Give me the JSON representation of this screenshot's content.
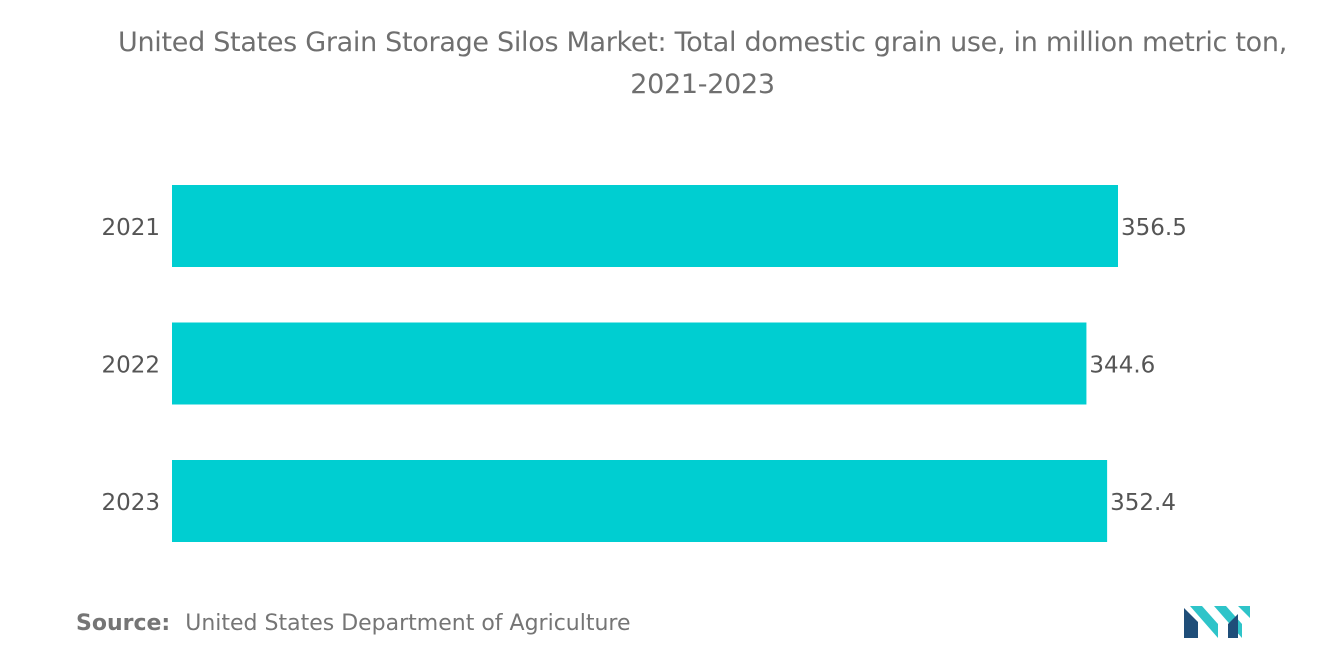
{
  "chart_data": {
    "type": "bar",
    "orientation": "horizontal",
    "title": "United States Grain Storage Silos Market: Total domestic grain use, in million metric ton, 2021-2023",
    "categories": [
      "2021",
      "2022",
      "2023"
    ],
    "values": [
      356.5,
      344.6,
      352.4
    ],
    "value_labels": [
      "356.5",
      "344.6",
      "352.4"
    ],
    "xlim": [
      0,
      356.5
    ],
    "grid": false,
    "legend": "none",
    "bar_color": "#00CED1"
  },
  "source": {
    "label": "Source:",
    "text": "United States Department of Agriculture"
  },
  "colors": {
    "title": "#6f6f6f",
    "tick_label": "#555555",
    "logo_dark": "#1f4e79",
    "logo_light": "#2ec4c9"
  }
}
